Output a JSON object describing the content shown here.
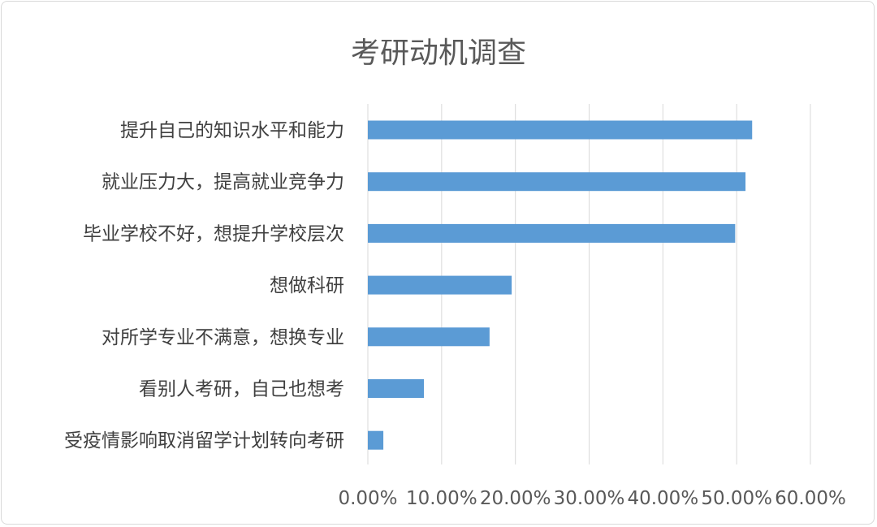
{
  "chart_data": {
    "type": "bar",
    "orientation": "horizontal",
    "title": "考研动机调查",
    "categories": [
      "提升自己的知识水平和能力",
      "就业压力大，提高就业竞争力",
      "毕业学校不好，想提升学校层次",
      "想做科研",
      "对所学专业不满意，想换专业",
      "看别人考研，自己也想考",
      "受疫情影响取消留学计划转向考研"
    ],
    "values": [
      0.521,
      0.512,
      0.498,
      0.195,
      0.165,
      0.076,
      0.021
    ],
    "xlim": [
      0,
      0.6
    ],
    "xticks": [
      "0.00%",
      "10.00%",
      "20.00%",
      "30.00%",
      "40.00%",
      "50.00%",
      "60.00%"
    ],
    "grid": true,
    "legend": "none",
    "bar_color": "#5b9bd5",
    "grid_color": "#d9d9d9"
  }
}
